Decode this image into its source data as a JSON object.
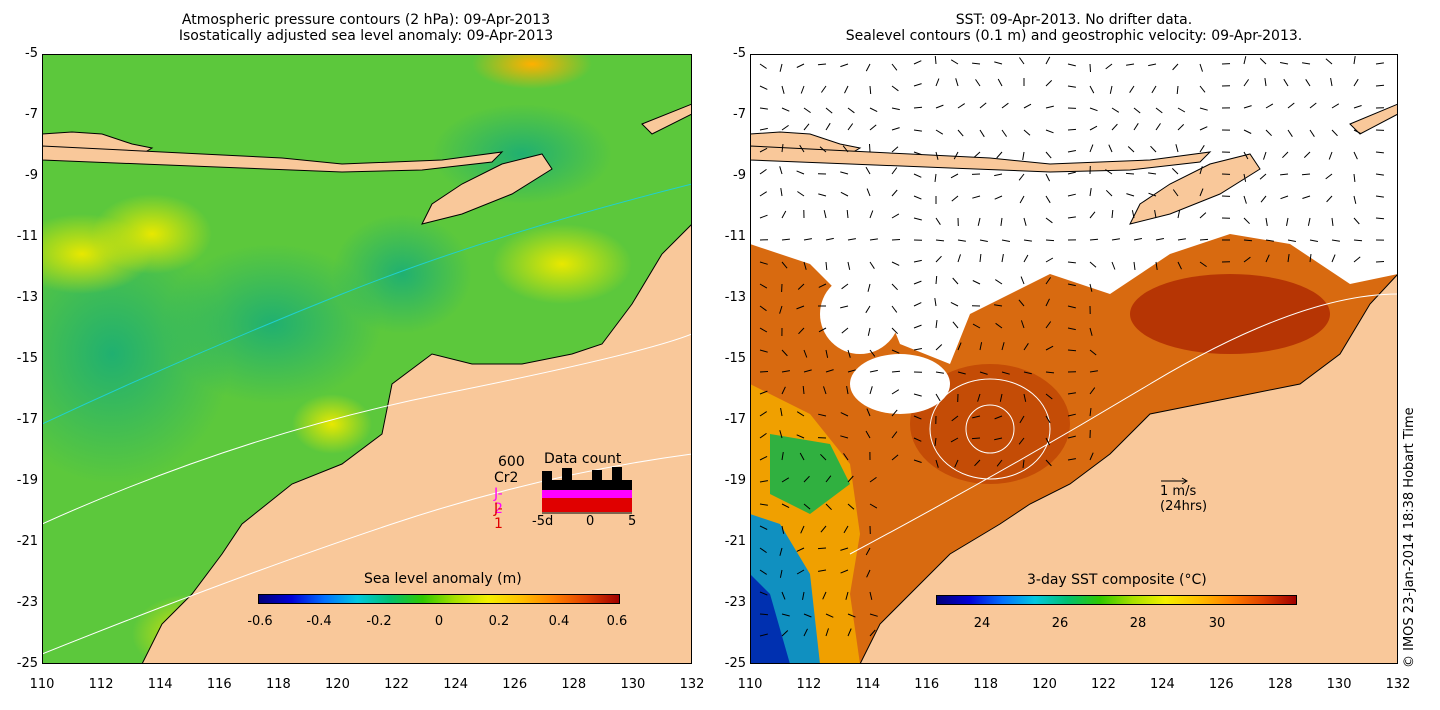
{
  "left_panel": {
    "title_line1": "Atmospheric pressure contours (2 hPa): 09-Apr-2013",
    "title_line2": "Isostatically adjusted sea level anomaly: 09-Apr-2013",
    "colorbar_title": "Sea level anomaly (m)",
    "colorbar_ticks": [
      "-0.6",
      "-0.4",
      "-0.2",
      "0",
      "0.2",
      "0.4",
      "0.6"
    ],
    "legend": {
      "count_head": "600",
      "cr2": "Cr2",
      "j2": "J-2",
      "j1": "J-1",
      "data_count_title": "Data count",
      "data_count_ticks": [
        "-5d",
        "0",
        "5"
      ],
      "colors": {
        "black": "#000000",
        "magenta": "#ff00ff",
        "red": "#e00000"
      }
    }
  },
  "right_panel": {
    "title_line1": "SST: 09-Apr-2013. No drifter data.",
    "title_line2": "Sealevel contours (0.1 m) and geostrophic velocity: 09-Apr-2013.",
    "colorbar_title": "3-day SST composite (°C)",
    "colorbar_ticks": [
      "24",
      "26",
      "28",
      "30"
    ],
    "vector_scale_line1": "1 m/s",
    "vector_scale_line2": "(24hrs)"
  },
  "axes": {
    "y_ticks": [
      "-5",
      "-7",
      "-9",
      "-11",
      "-13",
      "-15",
      "-17",
      "-19",
      "-21",
      "-23",
      "-25"
    ],
    "x_ticks": [
      "110",
      "112",
      "114",
      "116",
      "118",
      "120",
      "122",
      "124",
      "126",
      "128",
      "130",
      "132"
    ]
  },
  "credit": "© IMOS 23-Jan-2014 18:38 Hobart Time",
  "colors": {
    "land": "#f9c89a",
    "ocean_green": "#66cc33",
    "sst_warm": "#d86a10",
    "frame": "#000000"
  }
}
